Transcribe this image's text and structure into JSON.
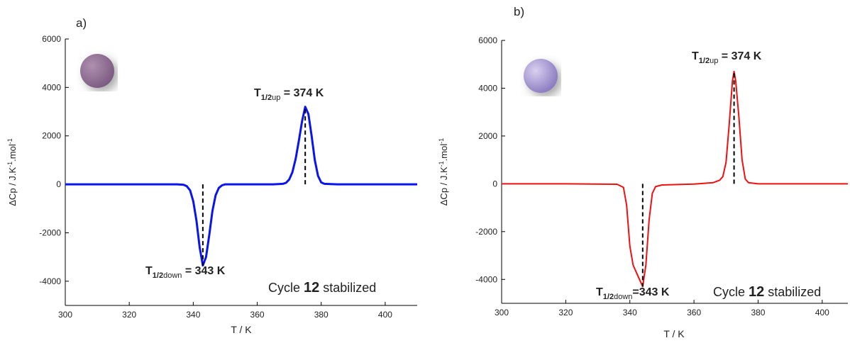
{
  "chart_data": [
    {
      "type": "line",
      "panel": "a)",
      "xlabel": "T / K",
      "ylabel": [
        "ΔCp / J.K",
        "-1",
        ".mol",
        "-1"
      ],
      "xlim": [
        300,
        410
      ],
      "xticks": [
        300,
        320,
        340,
        360,
        380,
        400
      ],
      "ylim": [
        -5000,
        6000
      ],
      "yticks": [
        -4000,
        -2000,
        0,
        2000,
        4000,
        6000
      ],
      "color": "#0a14f0",
      "x": [
        300,
        310,
        320,
        330,
        335,
        337,
        338,
        339,
        340,
        341,
        342,
        343,
        344,
        345,
        346,
        347,
        348,
        349,
        350,
        355,
        360,
        365,
        368,
        369,
        370,
        371,
        372,
        373,
        374,
        375,
        376,
        377,
        378,
        379,
        380,
        381,
        385,
        390,
        400,
        410
      ],
      "values": [
        0,
        0,
        0,
        0,
        0,
        -20,
        -80,
        -250,
        -700,
        -1500,
        -2600,
        -3350,
        -3000,
        -2100,
        -1100,
        -450,
        -150,
        -40,
        0,
        0,
        0,
        0,
        20,
        60,
        200,
        500,
        1050,
        1800,
        2600,
        3200,
        2900,
        2000,
        1000,
        350,
        80,
        20,
        0,
        0,
        0,
        0
      ],
      "peaks": [
        {
          "x": 343,
          "y": -3350
        },
        {
          "x": 375,
          "y": 3200
        }
      ],
      "annotations": [
        {
          "base": "T",
          "sub": "1/2",
          "sub2": "up",
          "text": " = 374 K"
        },
        {
          "base": "T",
          "sub": "1/2",
          "sub2": "down",
          "text": " = 343 K"
        }
      ],
      "note": [
        "Cycle ",
        "12",
        " stabilized"
      ]
    },
    {
      "type": "line",
      "panel": "b)",
      "xlabel": "T / K",
      "ylabel": [
        "ΔCp / J.K",
        "-1",
        ".mol",
        "-1"
      ],
      "xlim": [
        300,
        408
      ],
      "xticks": [
        300,
        320,
        340,
        360,
        380,
        400
      ],
      "ylim": [
        -5000,
        6000
      ],
      "yticks": [
        -4000,
        -2000,
        0,
        2000,
        4000,
        6000
      ],
      "color": "#f01010",
      "x": [
        300,
        320,
        336,
        338,
        339,
        340,
        341,
        342,
        343,
        344,
        345,
        346,
        347,
        348,
        350,
        360,
        366,
        368,
        369,
        370,
        371,
        372,
        372.5,
        373,
        374,
        375,
        376,
        377,
        380,
        390,
        408
      ],
      "values": [
        0,
        0,
        -20,
        -150,
        -900,
        -2600,
        -3400,
        -3700,
        -4000,
        -4300,
        -3400,
        -1500,
        -400,
        -120,
        -50,
        -10,
        50,
        150,
        300,
        900,
        2500,
        4300,
        4700,
        4300,
        2800,
        1000,
        200,
        50,
        0,
        0,
        0
      ],
      "peaks": [
        {
          "x": 344,
          "y": -4300
        },
        {
          "x": 372.5,
          "y": 4700
        }
      ],
      "annotations": [
        {
          "base": "T",
          "sub": "1/2",
          "sub2": "up",
          "text": " = 374 K"
        },
        {
          "base": "T",
          "sub": "1/2",
          "sub2": "down",
          "text": "=343 K"
        }
      ],
      "note": [
        "Cycle ",
        "12",
        " stabilized"
      ]
    }
  ]
}
